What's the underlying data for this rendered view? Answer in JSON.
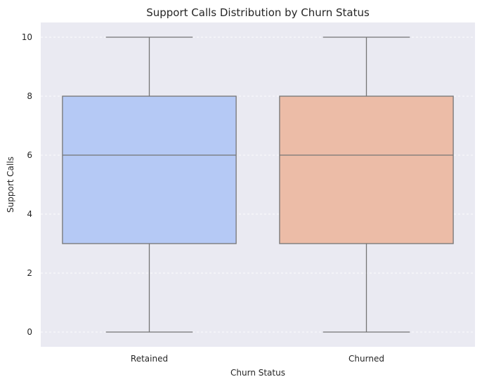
{
  "chart_data": {
    "type": "box",
    "title": "Support Calls Distribution by Churn Status",
    "xlabel": "Churn Status",
    "ylabel": "Support Calls",
    "ylim": [
      -0.5,
      10.5
    ],
    "yticks": [
      0,
      2,
      4,
      6,
      8,
      10
    ],
    "grid": true,
    "categories": [
      "Retained",
      "Churned"
    ],
    "series": [
      {
        "category": "Retained",
        "min": 0,
        "q1": 3,
        "median": 6,
        "q3": 8,
        "max": 10,
        "color": "#b5c9f5"
      },
      {
        "category": "Churned",
        "min": 0,
        "q1": 3,
        "median": 6,
        "q3": 8,
        "max": 10,
        "color": "#ecbca7"
      }
    ],
    "colors": {
      "background": "#eaeaf2",
      "grid": "#ffffff",
      "line": "#757575"
    }
  }
}
